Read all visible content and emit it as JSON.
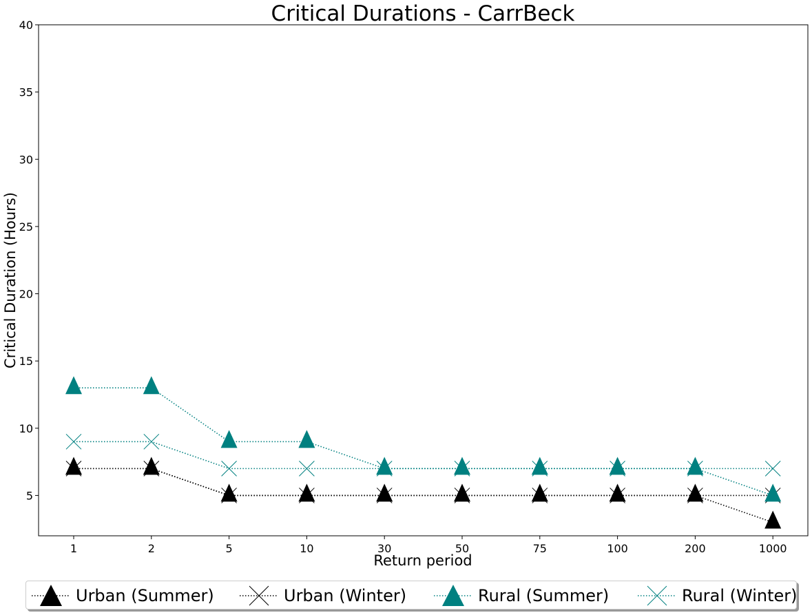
{
  "chart_data": {
    "type": "line",
    "title": "Critical Durations - CarrBeck",
    "xlabel": "Return period",
    "ylabel": "Critical Duration (Hours)",
    "categories": [
      "1",
      "2",
      "5",
      "10",
      "30",
      "50",
      "75",
      "100",
      "200",
      "1000"
    ],
    "ylim": [
      2,
      40
    ],
    "yticks": [
      5,
      10,
      15,
      20,
      25,
      30,
      35,
      40
    ],
    "grid": false,
    "legend_position": "bottom",
    "series": [
      {
        "name": "Urban (Summer)",
        "marker": "triangle",
        "color": "#000000",
        "linestyle": "dotted",
        "values": [
          7,
          7,
          5,
          5,
          5,
          5,
          5,
          5,
          5,
          3
        ]
      },
      {
        "name": "Urban (Winter)",
        "marker": "x",
        "color": "#000000",
        "linestyle": "dotted",
        "values": [
          7,
          7,
          5,
          5,
          5,
          5,
          5,
          5,
          5,
          5
        ]
      },
      {
        "name": "Rural (Summer)",
        "marker": "triangle",
        "color": "#008080",
        "linestyle": "dotted",
        "values": [
          13,
          13,
          9,
          9,
          7,
          7,
          7,
          7,
          7,
          5
        ]
      },
      {
        "name": "Rural (Winter)",
        "marker": "x",
        "color": "#008080",
        "linestyle": "dotted",
        "values": [
          9,
          9,
          7,
          7,
          7,
          7,
          7,
          7,
          7,
          7
        ]
      }
    ]
  }
}
